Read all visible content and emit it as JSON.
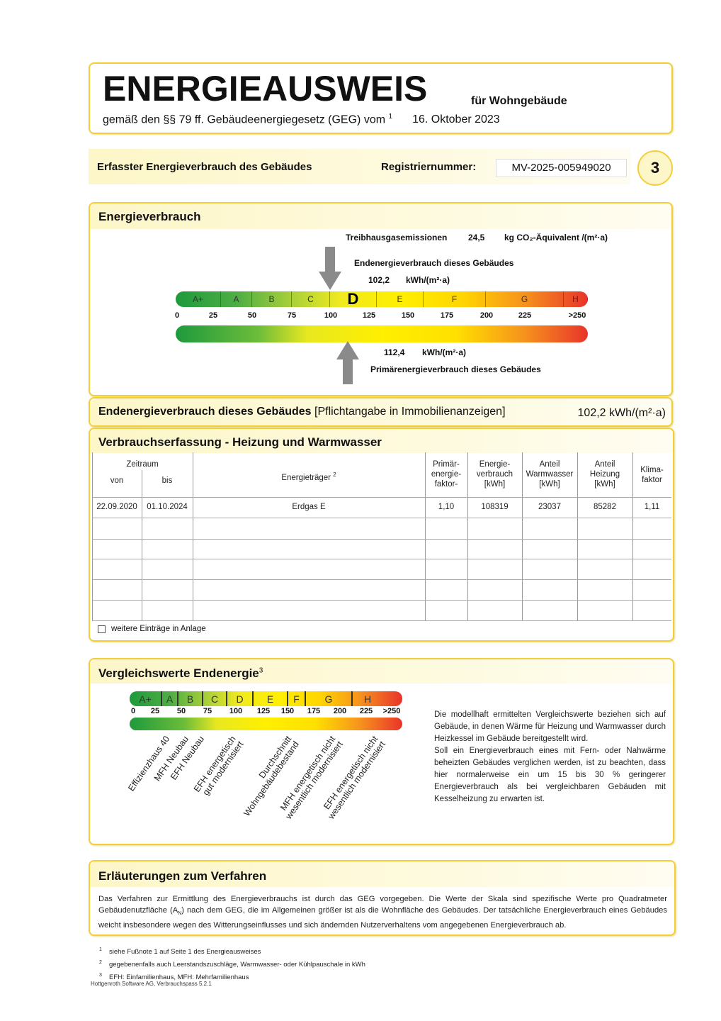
{
  "header": {
    "title": "ENERGIEAUSWEIS",
    "subtitle_right": "für Wohngebäude",
    "law_line": "gemäß den §§ 79 ff. Gebäudeenergiegesetz (GEG) vom",
    "law_sup": "1",
    "law_date": "16. Oktober 2023"
  },
  "section_bar": {
    "label": "Erfasster Energieverbrauch des Gebäudes",
    "reg_label": "Registriernummer:",
    "reg_number": "MV-2025-005949020",
    "page_number": "3"
  },
  "energy": {
    "title": "Energieverbrauch",
    "ghg_label": "Treibhausgasemissionen",
    "ghg_value": "24,5",
    "ghg_unit": "kg CO₂-Äquivalent /(m²·a)",
    "end_label": "Endenergieverbrauch dieses Gebäudes",
    "end_value": "102,2",
    "end_unit": "kWh/(m²·a)",
    "prim_value": "112,4",
    "prim_unit": "kWh/(m²·a)",
    "prim_label": "Primärenergieverbrauch dieses Gebäudes",
    "current_class": "D",
    "classes": [
      "A+",
      "A",
      "B",
      "C",
      "D",
      "E",
      "F",
      "G",
      "H"
    ],
    "ticks": [
      "0",
      "25",
      "50",
      "75",
      "100",
      "125",
      "150",
      "175",
      "200",
      "225",
      ">250"
    ]
  },
  "endenergy_strip": {
    "label": "Endenergieverbrauch dieses Gebäudes",
    "note": "[Pflichtangabe in Immobilienanzeigen]",
    "value": "102,2 kWh/(m²·a)"
  },
  "table": {
    "title": "Verbrauchserfassung - Heizung und Warmwasser",
    "headers": {
      "zeitraum": "Zeitraum",
      "von": "von",
      "bis": "bis",
      "traeger": "Energieträger",
      "traeger_sup": "2",
      "pef": "Primär-\nenergie-\nfaktor-",
      "verbrauch": "Energie-\nverbrauch\n[kWh]",
      "ww": "Anteil\nWarmwasser\n[kWh]",
      "heiz": "Anteil\nHeizung\n[kWh]",
      "klima": "Klima-\nfaktor"
    },
    "rows": [
      [
        "22.09.2020",
        "01.10.2024",
        "Erdgas E",
        "1,10",
        "108319",
        "23037",
        "85282",
        "1,11"
      ]
    ],
    "more_entries": "weitere Einträge in Anlage",
    "more_entries_checked": false
  },
  "compare": {
    "title": "Vergleichswerte Endenergie",
    "title_sup": "3",
    "classes": [
      "A+",
      "A",
      "B",
      "C",
      "D",
      "E",
      "F",
      "G",
      "H"
    ],
    "ticks": [
      "0",
      "25",
      "50",
      "75",
      "100",
      "125",
      "150",
      "175",
      "200",
      "225",
      ">250"
    ],
    "refs": [
      "Effizienzhaus 40",
      "MFH Neubau",
      "EFH Neubau",
      "EFH energetisch\ngut modernisiert",
      "Durchschnitt\nWohngebäudebestand",
      "MFH energetisch nicht\nwesentlich modernisiert",
      "EFH energetisch nicht\nwesentlich modernisiert"
    ],
    "text1": "Die modellhaft ermittelten Vergleichswerte beziehen sich auf Gebäude, in denen Wärme für Heizung und Warmwasser durch Heizkessel im Gebäude bereitgestellt wird.",
    "text2": "Soll ein Energieverbrauch eines mit Fern- oder Nahwärme beheizten Gebäudes verglichen werden, ist zu beachten, dass hier normalerweise ein um 15 bis 30 % geringerer Energieverbrauch als bei vergleichbaren Gebäuden mit Kesselheizung zu erwarten ist."
  },
  "explain": {
    "title": "Erläuterungen zum Verfahren",
    "text_a": "Das Verfahren zur Ermittlung des Energieverbrauchs ist durch das GEG vorgegeben. Die Werte der Skala sind spezifische Werte pro Quadratmeter Gebäudenutzfläche (A",
    "text_sub": "N",
    "text_b": ") nach dem GEG, die im Allgemeinen größer ist als die Wohnfläche des Gebäudes. Der tatsächliche Energieverbrauch eines Gebäudes weicht insbesondere wegen des Witterungseinflusses und sich ändernden Nutzerverhaltens vom angegebenen Energieverbrauch ab."
  },
  "footnotes": [
    {
      "n": "1",
      "t": "siehe Fußnote 1 auf Seite 1 des Energieausweises"
    },
    {
      "n": "2",
      "t": "gegebenenfalls auch Leerstandszuschläge, Warmwasser- oder Kühlpauschale in kWh"
    },
    {
      "n": "3",
      "t": "EFH: Einfamilienhaus, MFH: Mehrfamilienhaus"
    }
  ],
  "software": "Hottgenroth Software AG, Verbrauchspass 5.2.1",
  "colors": {
    "border": "#f2cf3a",
    "arrow": "#8a8a8a"
  }
}
